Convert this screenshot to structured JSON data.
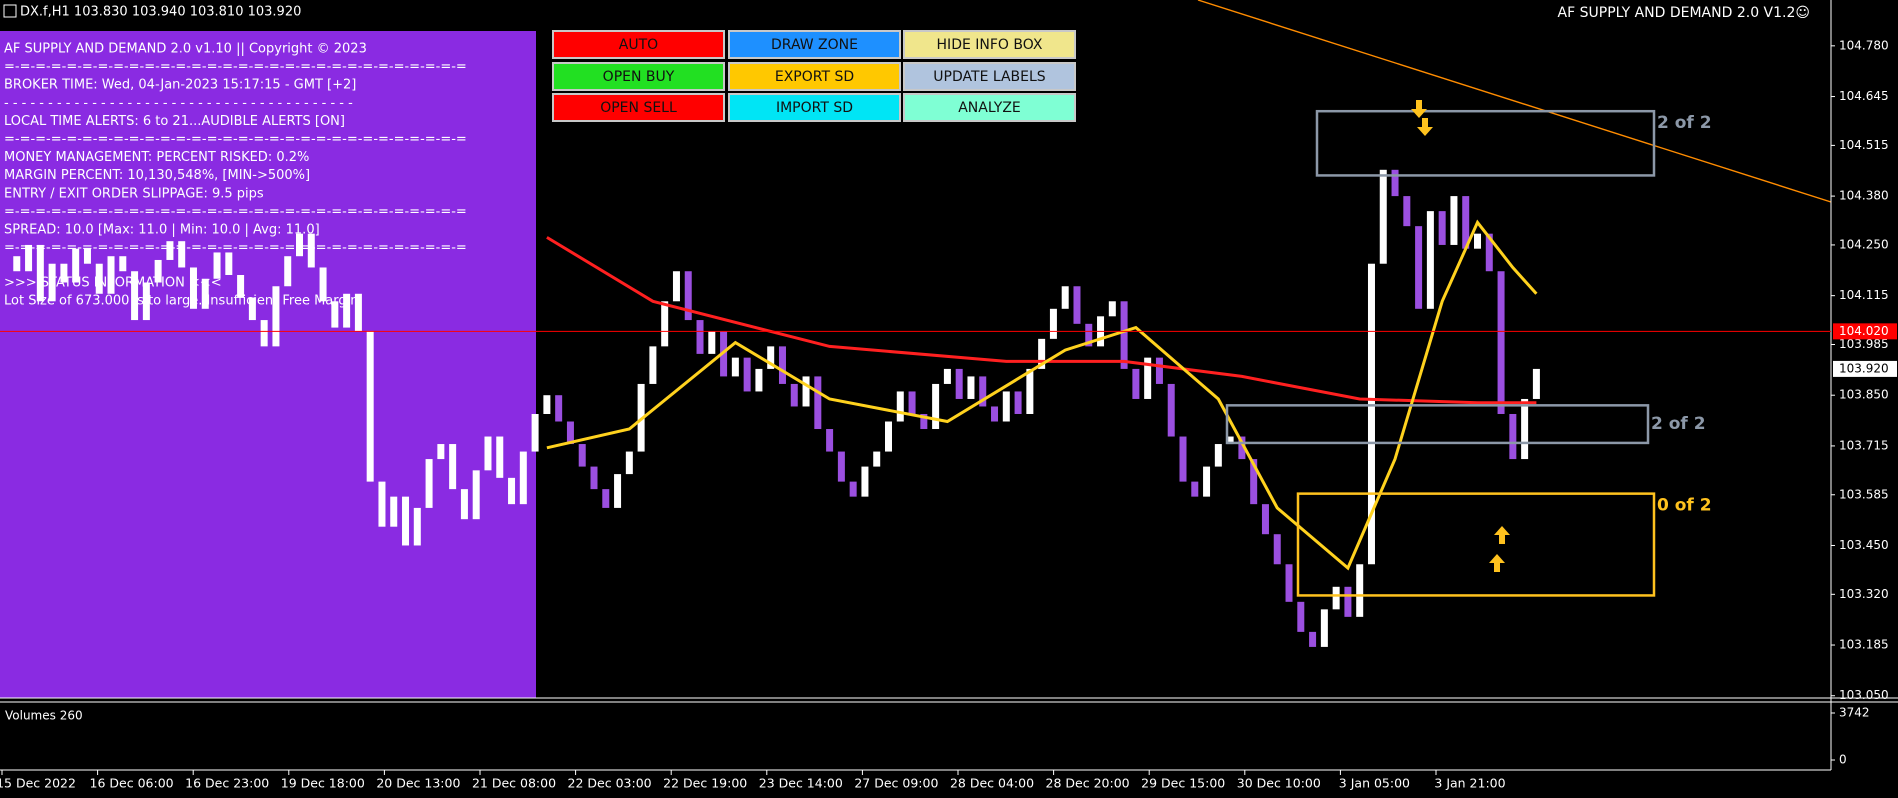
{
  "header": {
    "symbol_quote": "DX.f,H1  103.830 103.940 103.810 103.920",
    "indicator_title": "AF SUPPLY AND DEMAND 2.0 V1.2☺"
  },
  "info_box": {
    "lines": [
      "AF SUPPLY AND DEMAND 2.0 v1.10 || Copyright © 2023",
      "=-=-=-=-=-=-=-=-=-=-=-=-=-=-=-=-=-=-=-=-=-=-=-=-=-=-=-=-=-=",
      "BROKER TIME: Wed, 04-Jan-2023 15:17:15 - GMT [+2]",
      "- - - - - - - - - - - - - - - - - - - - - - - - - - - - - - - - - - - - - - - -",
      "LOCAL TIME ALERTS: 6 to 21...AUDIBLE ALERTS [ON]",
      "=-=-=-=-=-=-=-=-=-=-=-=-=-=-=-=-=-=-=-=-=-=-=-=-=-=-=-=-=-=",
      "MONEY MANAGEMENT: PERCENT RISKED: 0.2%",
      "MARGIN PERCENT: 10,130,548%, [MIN->500%]",
      "ENTRY / EXIT ORDER SLIPPAGE: 9.5 pips",
      "=-=-=-=-=-=-=-=-=-=-=-=-=-=-=-=-=-=-=-=-=-=-=-=-=-=-=-=-=-=",
      "SPREAD: 10.0 [Max: 11.0 | Min: 10.0 | Avg: 11.0]",
      "=-=-=-=-=-=-=-=-=-=-=-=-=-=-=-=-=-=-=-=-=-=-=-=-=-=-=-=-=-="
    ],
    "status_lines": [
      ">>> STATUS INFORMATION <<<",
      "Lot Size of 673.000 is to large. Insufficient Free Margin."
    ]
  },
  "buttons": [
    [
      {
        "label": "AUTO",
        "color": "#ff0000"
      },
      {
        "label": "DRAW ZONE",
        "color": "#1e90ff"
      },
      {
        "label": "HIDE INFO BOX",
        "color": "#f0e68c"
      }
    ],
    [
      {
        "label": "OPEN BUY",
        "color": "#22e022"
      },
      {
        "label": "EXPORT SD",
        "color": "#ffc800"
      },
      {
        "label": "UPDATE LABELS",
        "color": "#b0c4de"
      }
    ],
    [
      {
        "label": "OPEN SELL",
        "color": "#ff0000"
      },
      {
        "label": "IMPORT SD",
        "color": "#00e5f5"
      },
      {
        "label": "ANALYZE",
        "color": "#7fffd4"
      }
    ]
  ],
  "chart_data": {
    "type": "candlestick",
    "close": [
      104.22,
      104.18,
      104.25,
      104.1,
      104.2,
      104.15,
      104.24,
      104.2,
      104.12,
      104.22,
      104.18,
      104.05,
      104.15,
      104.21,
      104.26,
      104.19,
      104.08,
      104.16,
      104.23,
      104.17,
      104.11,
      104.05,
      103.98,
      104.14,
      104.22,
      104.28,
      104.19,
      104.1,
      104.03,
      104.12,
      104.02,
      103.62,
      103.5,
      103.58,
      103.45,
      103.55,
      103.68,
      103.72,
      103.6,
      103.52,
      103.65,
      103.74,
      103.63,
      103.56,
      103.7,
      103.8,
      103.85,
      103.78,
      103.72,
      103.66,
      103.6,
      103.55,
      103.64,
      103.7,
      103.88,
      103.98,
      104.1,
      104.18,
      104.05,
      103.96,
      104.02,
      103.9,
      103.95,
      103.86,
      103.92,
      103.98,
      103.88,
      103.82,
      103.9,
      103.76,
      103.7,
      103.62,
      103.58,
      103.66,
      103.7,
      103.78,
      103.86,
      103.8,
      103.76,
      103.88,
      103.92,
      103.84,
      103.9,
      103.82,
      103.78,
      103.86,
      103.8,
      103.92,
      104.0,
      104.08,
      104.14,
      104.04,
      103.98,
      104.06,
      104.1,
      103.92,
      103.84,
      103.95,
      103.88,
      103.74,
      103.62,
      103.58,
      103.66,
      103.72,
      103.74,
      103.68,
      103.56,
      103.48,
      103.4,
      103.3,
      103.22,
      103.18,
      103.28,
      103.34,
      103.26,
      103.4,
      104.2,
      104.45,
      104.38,
      104.3,
      104.08,
      104.34,
      104.25,
      104.38,
      104.24,
      104.28,
      104.18,
      103.8,
      103.68,
      103.84,
      103.92
    ],
    "up_color": "#ffffff",
    "down_color": "#9b4fe0",
    "ma_lines": [
      {
        "color": "#ff2020",
        "x": [
          46,
          55,
          70,
          85,
          95,
          105,
          115,
          125,
          130
        ],
        "values": [
          104.27,
          104.1,
          103.98,
          103.94,
          103.94,
          103.9,
          103.84,
          103.83,
          103.83
        ]
      },
      {
        "color": "#ffd21e",
        "x": [
          46,
          53,
          62,
          70,
          80,
          90,
          96,
          103,
          108,
          114,
          118,
          122,
          125,
          128,
          130
        ],
        "values": [
          103.71,
          103.76,
          103.99,
          103.84,
          103.78,
          103.97,
          104.03,
          103.84,
          103.55,
          103.39,
          103.68,
          104.1,
          104.31,
          104.19,
          104.12
        ]
      }
    ],
    "zones": [
      {
        "top": 104.606,
        "bottom": 104.435,
        "label": "2 of 2",
        "color": "#8c98a8"
      },
      {
        "top": 103.823,
        "bottom": 103.723,
        "label": "2 of 2",
        "color": "#8c98a8"
      },
      {
        "top": 103.588,
        "bottom": 103.317,
        "label": "0 of 2",
        "color": "#ffc21e"
      }
    ],
    "price_lines": [
      {
        "value": 104.02,
        "label": "104.020",
        "color": "#ff0000",
        "label_text_color": "#ffffff",
        "line": true
      },
      {
        "value": 103.92,
        "label": "103.920",
        "color": "#ffffff",
        "label_text_color": "#000000",
        "line": false
      }
    ],
    "ylim": [
      103.044,
      104.902
    ],
    "yticks": [
      {
        "value": 104.78,
        "label": "104.780"
      },
      {
        "value": 104.645,
        "label": "104.645"
      },
      {
        "value": 104.515,
        "label": "104.515"
      },
      {
        "value": 104.38,
        "label": "104.380"
      },
      {
        "value": 104.25,
        "label": "104.250"
      },
      {
        "value": 104.115,
        "label": "104.115"
      },
      {
        "value": 103.985,
        "label": "103.985"
      },
      {
        "value": 103.85,
        "label": "103.850"
      },
      {
        "value": 103.715,
        "label": "103.715"
      },
      {
        "value": 103.585,
        "label": "103.585"
      },
      {
        "value": 103.45,
        "label": "103.450"
      },
      {
        "value": 103.32,
        "label": "103.320"
      },
      {
        "value": 103.185,
        "label": "103.185"
      },
      {
        "value": 103.05,
        "label": "103.050"
      }
    ],
    "x_labels": [
      "15 Dec 2022",
      "16 Dec 06:00",
      "16 Dec 23:00",
      "19 Dec 18:00",
      "20 Dec 13:00",
      "21 Dec 08:00",
      "22 Dec 03:00",
      "22 Dec 19:00",
      "23 Dec 14:00",
      "27 Dec 09:00",
      "28 Dec 04:00",
      "28 Dec 20:00",
      "29 Dec 15:00",
      "30 Dec 10:00",
      "3 Jan 05:00",
      "3 Jan 21:00"
    ],
    "volume_panel": {
      "title": "Volumes 260",
      "ylim": [
        0,
        3742
      ],
      "yticks": [
        3742,
        0
      ]
    }
  }
}
